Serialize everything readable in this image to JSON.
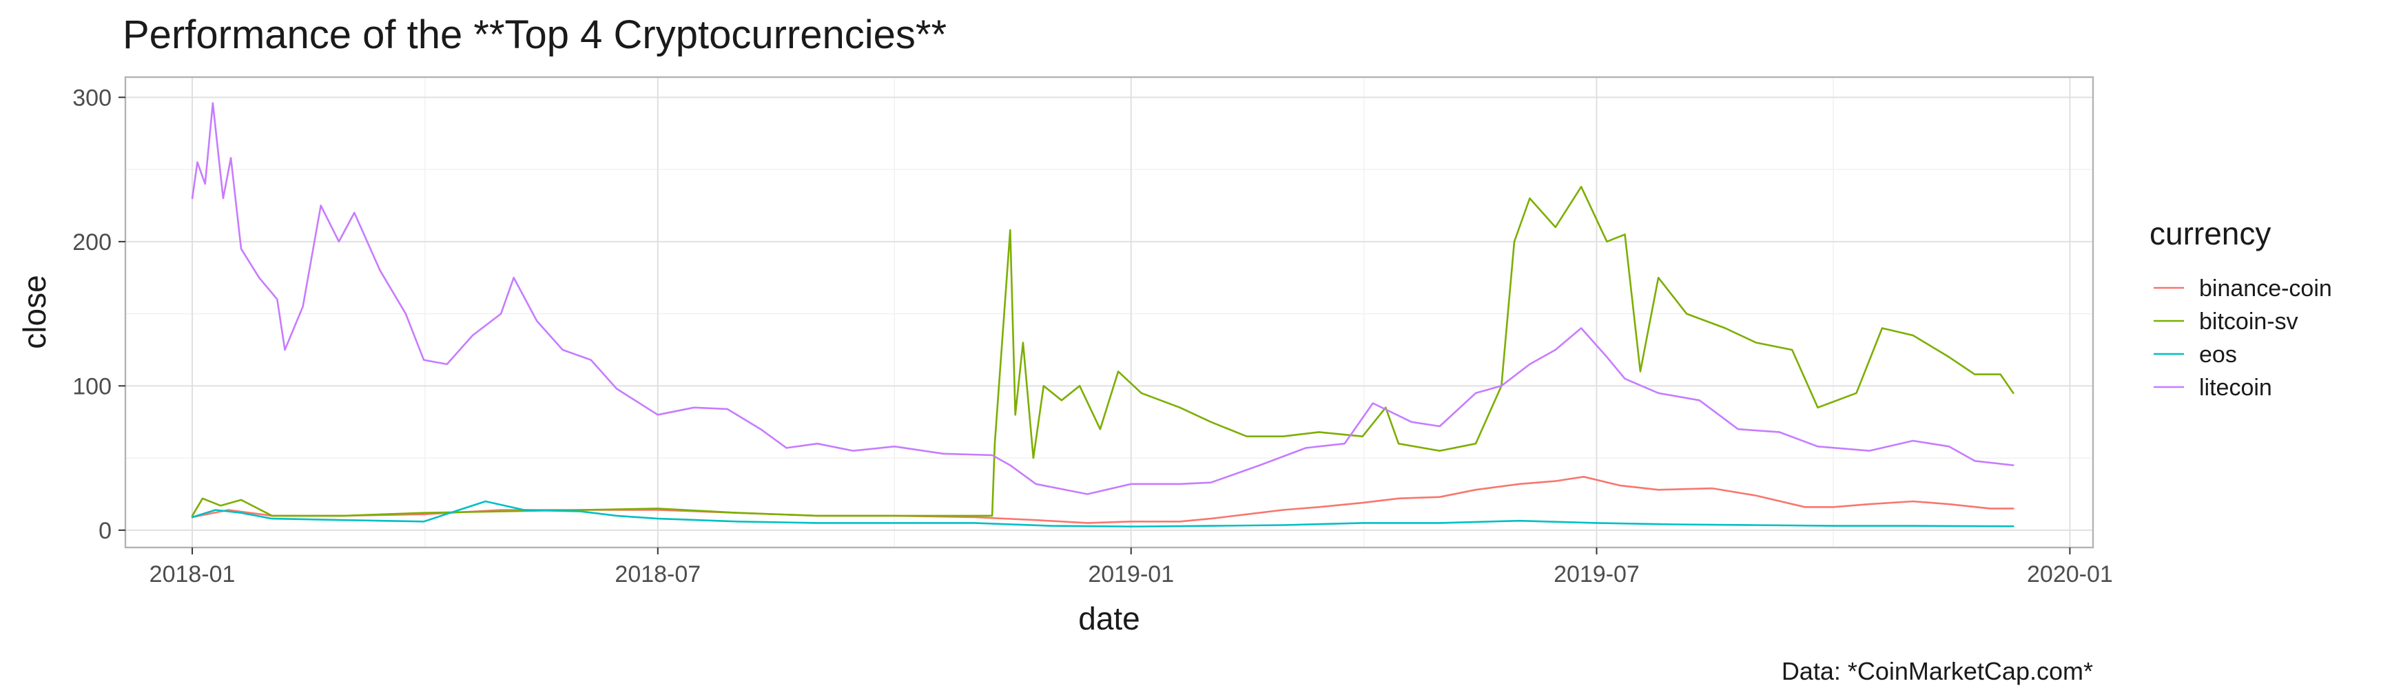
{
  "chart_data": {
    "type": "line",
    "title": "Performance of the **Top 4 Cryptocurrencies**",
    "xlabel": "date",
    "ylabel": "close",
    "caption": "Data: *CoinMarketCap.com*",
    "legend_title": "currency",
    "legend_position": "right",
    "grid": true,
    "xlim": [
      "2017-12-06",
      "2020-01-10"
    ],
    "ylim": [
      -12,
      314
    ],
    "x_ticks": [
      "2018-01-01",
      "2018-07-01",
      "2019-01-01",
      "2019-07-01",
      "2020-01-01"
    ],
    "x_tick_labels": [
      "2018-01",
      "2018-07",
      "2019-01",
      "2019-07",
      "2020-01"
    ],
    "y_ticks": [
      0,
      100,
      200,
      300
    ],
    "y_tick_labels": [
      "0",
      "100",
      "200",
      "300"
    ],
    "series": [
      {
        "name": "binance-coin",
        "color": "#F8766D",
        "points": [
          [
            "2018-01-01",
            9
          ],
          [
            "2018-01-15",
            14
          ],
          [
            "2018-02-01",
            10
          ],
          [
            "2018-03-01",
            10
          ],
          [
            "2018-04-01",
            11
          ],
          [
            "2018-05-01",
            14
          ],
          [
            "2018-06-01",
            14
          ],
          [
            "2018-07-01",
            14
          ],
          [
            "2018-08-01",
            12
          ],
          [
            "2018-09-01",
            10
          ],
          [
            "2018-10-01",
            10
          ],
          [
            "2018-11-01",
            9
          ],
          [
            "2018-11-25",
            7
          ],
          [
            "2018-12-15",
            5
          ],
          [
            "2019-01-01",
            6
          ],
          [
            "2019-01-20",
            6
          ],
          [
            "2019-02-01",
            8
          ],
          [
            "2019-02-15",
            11
          ],
          [
            "2019-03-01",
            14
          ],
          [
            "2019-03-15",
            16
          ],
          [
            "2019-04-01",
            19
          ],
          [
            "2019-04-15",
            22
          ],
          [
            "2019-05-01",
            23
          ],
          [
            "2019-05-15",
            28
          ],
          [
            "2019-06-01",
            32
          ],
          [
            "2019-06-15",
            34
          ],
          [
            "2019-06-26",
            37
          ],
          [
            "2019-07-10",
            31
          ],
          [
            "2019-07-25",
            28
          ],
          [
            "2019-08-15",
            29
          ],
          [
            "2019-09-01",
            24
          ],
          [
            "2019-09-20",
            16
          ],
          [
            "2019-10-01",
            16
          ],
          [
            "2019-10-15",
            18
          ],
          [
            "2019-11-01",
            20
          ],
          [
            "2019-11-15",
            18
          ],
          [
            "2019-12-01",
            15
          ],
          [
            "2019-12-10",
            15
          ]
        ]
      },
      {
        "name": "bitcoin-sv",
        "color": "#7CAE00",
        "points": [
          [
            "2018-01-01",
            10
          ],
          [
            "2018-01-05",
            22
          ],
          [
            "2018-01-12",
            17
          ],
          [
            "2018-01-20",
            21
          ],
          [
            "2018-02-01",
            10
          ],
          [
            "2018-03-01",
            10
          ],
          [
            "2018-04-01",
            12
          ],
          [
            "2018-05-01",
            13
          ],
          [
            "2018-06-01",
            14
          ],
          [
            "2018-07-01",
            15
          ],
          [
            "2018-08-01",
            12
          ],
          [
            "2018-09-01",
            10
          ],
          [
            "2018-10-01",
            10
          ],
          [
            "2018-11-08",
            10
          ],
          [
            "2018-11-09",
            60
          ],
          [
            "2018-11-15",
            208
          ],
          [
            "2018-11-17",
            80
          ],
          [
            "2018-11-20",
            130
          ],
          [
            "2018-11-24",
            50
          ],
          [
            "2018-11-28",
            100
          ],
          [
            "2018-12-05",
            90
          ],
          [
            "2018-12-12",
            100
          ],
          [
            "2018-12-20",
            70
          ],
          [
            "2018-12-27",
            110
          ],
          [
            "2019-01-05",
            95
          ],
          [
            "2019-01-20",
            85
          ],
          [
            "2019-02-01",
            75
          ],
          [
            "2019-02-15",
            65
          ],
          [
            "2019-03-01",
            65
          ],
          [
            "2019-03-15",
            68
          ],
          [
            "2019-04-01",
            65
          ],
          [
            "2019-04-10",
            85
          ],
          [
            "2019-04-15",
            60
          ],
          [
            "2019-05-01",
            55
          ],
          [
            "2019-05-15",
            60
          ],
          [
            "2019-05-25",
            100
          ],
          [
            "2019-05-30",
            200
          ],
          [
            "2019-06-05",
            230
          ],
          [
            "2019-06-15",
            210
          ],
          [
            "2019-06-25",
            238
          ],
          [
            "2019-07-05",
            200
          ],
          [
            "2019-07-12",
            205
          ],
          [
            "2019-07-18",
            110
          ],
          [
            "2019-07-25",
            175
          ],
          [
            "2019-08-05",
            150
          ],
          [
            "2019-08-20",
            140
          ],
          [
            "2019-09-01",
            130
          ],
          [
            "2019-09-15",
            125
          ],
          [
            "2019-09-25",
            85
          ],
          [
            "2019-10-10",
            95
          ],
          [
            "2019-10-20",
            140
          ],
          [
            "2019-11-01",
            135
          ],
          [
            "2019-11-15",
            120
          ],
          [
            "2019-11-25",
            108
          ],
          [
            "2019-12-05",
            108
          ],
          [
            "2019-12-10",
            95
          ]
        ]
      },
      {
        "name": "eos",
        "color": "#00BFC4",
        "points": [
          [
            "2018-01-01",
            9
          ],
          [
            "2018-01-10",
            14
          ],
          [
            "2018-01-20",
            12
          ],
          [
            "2018-02-01",
            8
          ],
          [
            "2018-03-01",
            7
          ],
          [
            "2018-04-01",
            6
          ],
          [
            "2018-04-25",
            20
          ],
          [
            "2018-05-10",
            14
          ],
          [
            "2018-06-01",
            13
          ],
          [
            "2018-06-15",
            10
          ],
          [
            "2018-07-01",
            8
          ],
          [
            "2018-08-01",
            6
          ],
          [
            "2018-09-01",
            5
          ],
          [
            "2018-10-01",
            5
          ],
          [
            "2018-11-01",
            5
          ],
          [
            "2018-12-01",
            3
          ],
          [
            "2019-01-01",
            2.5
          ],
          [
            "2019-02-01",
            3
          ],
          [
            "2019-03-01",
            3.5
          ],
          [
            "2019-04-01",
            5
          ],
          [
            "2019-05-01",
            5
          ],
          [
            "2019-06-01",
            6.5
          ],
          [
            "2019-07-01",
            5
          ],
          [
            "2019-08-01",
            4
          ],
          [
            "2019-09-01",
            3.5
          ],
          [
            "2019-10-01",
            3
          ],
          [
            "2019-11-01",
            3
          ],
          [
            "2019-12-10",
            2.7
          ]
        ]
      },
      {
        "name": "litecoin",
        "color": "#C77CFF",
        "points": [
          [
            "2018-01-01",
            230
          ],
          [
            "2018-01-03",
            255
          ],
          [
            "2018-01-06",
            240
          ],
          [
            "2018-01-09",
            296
          ],
          [
            "2018-01-13",
            230
          ],
          [
            "2018-01-16",
            258
          ],
          [
            "2018-01-20",
            195
          ],
          [
            "2018-01-27",
            175
          ],
          [
            "2018-02-03",
            160
          ],
          [
            "2018-02-06",
            125
          ],
          [
            "2018-02-13",
            155
          ],
          [
            "2018-02-20",
            225
          ],
          [
            "2018-02-27",
            200
          ],
          [
            "2018-03-05",
            220
          ],
          [
            "2018-03-15",
            180
          ],
          [
            "2018-03-25",
            150
          ],
          [
            "2018-04-01",
            118
          ],
          [
            "2018-04-10",
            115
          ],
          [
            "2018-04-20",
            135
          ],
          [
            "2018-05-01",
            150
          ],
          [
            "2018-05-06",
            175
          ],
          [
            "2018-05-15",
            145
          ],
          [
            "2018-05-25",
            125
          ],
          [
            "2018-06-05",
            118
          ],
          [
            "2018-06-15",
            98
          ],
          [
            "2018-07-01",
            80
          ],
          [
            "2018-07-15",
            85
          ],
          [
            "2018-07-28",
            84
          ],
          [
            "2018-08-10",
            70
          ],
          [
            "2018-08-20",
            57
          ],
          [
            "2018-09-01",
            60
          ],
          [
            "2018-09-15",
            55
          ],
          [
            "2018-10-01",
            58
          ],
          [
            "2018-10-20",
            53
          ],
          [
            "2018-11-08",
            52
          ],
          [
            "2018-11-15",
            45
          ],
          [
            "2018-11-25",
            32
          ],
          [
            "2018-12-15",
            25
          ],
          [
            "2019-01-01",
            32
          ],
          [
            "2019-01-20",
            32
          ],
          [
            "2019-02-01",
            33
          ],
          [
            "2019-02-20",
            45
          ],
          [
            "2019-03-10",
            57
          ],
          [
            "2019-03-25",
            60
          ],
          [
            "2019-04-05",
            88
          ],
          [
            "2019-04-20",
            75
          ],
          [
            "2019-05-01",
            72
          ],
          [
            "2019-05-15",
            95
          ],
          [
            "2019-05-25",
            100
          ],
          [
            "2019-06-05",
            115
          ],
          [
            "2019-06-15",
            125
          ],
          [
            "2019-06-25",
            140
          ],
          [
            "2019-07-05",
            120
          ],
          [
            "2019-07-12",
            105
          ],
          [
            "2019-07-25",
            95
          ],
          [
            "2019-08-10",
            90
          ],
          [
            "2019-08-25",
            70
          ],
          [
            "2019-09-10",
            68
          ],
          [
            "2019-09-25",
            58
          ],
          [
            "2019-10-15",
            55
          ],
          [
            "2019-11-01",
            62
          ],
          [
            "2019-11-15",
            58
          ],
          [
            "2019-11-25",
            48
          ],
          [
            "2019-12-10",
            45
          ]
        ]
      }
    ]
  }
}
